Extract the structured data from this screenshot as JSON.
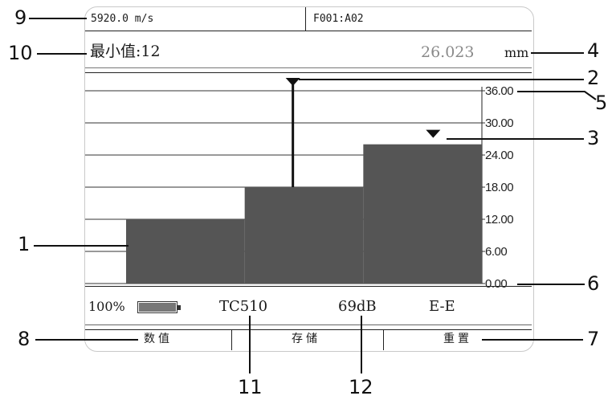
{
  "header": {
    "velocity": "5920.0 m/s",
    "file_id": "F001:A02"
  },
  "reading": {
    "min_label": "最小值:12",
    "thickness_value": "26.023",
    "thickness_unit": "mm"
  },
  "status": {
    "battery_percent": "100%",
    "battery_level": 1.0,
    "probe": "TC510",
    "gain": "69dB",
    "mode": "E-E"
  },
  "softkeys": [
    "数值",
    "存储",
    "重置"
  ],
  "callouts": [
    "1",
    "2",
    "3",
    "4",
    "5",
    "6",
    "7",
    "8",
    "9",
    "10",
    "11",
    "12"
  ],
  "chart_data": {
    "type": "area",
    "y_ticks": [
      "36.00",
      "30.00",
      "24.00",
      "18.00",
      "12.00",
      "6.00",
      "0.00"
    ],
    "ylim": [
      0,
      36
    ],
    "steps": [
      {
        "x_start": 0,
        "x_end": 1,
        "value": 12
      },
      {
        "x_start": 1,
        "x_end": 2,
        "value": 18
      },
      {
        "x_start": 2,
        "x_end": 3,
        "value": 26
      }
    ],
    "markers": {
      "max_marker_step": 1,
      "current_marker_step": 2
    },
    "grid": true,
    "color": "#555555"
  }
}
